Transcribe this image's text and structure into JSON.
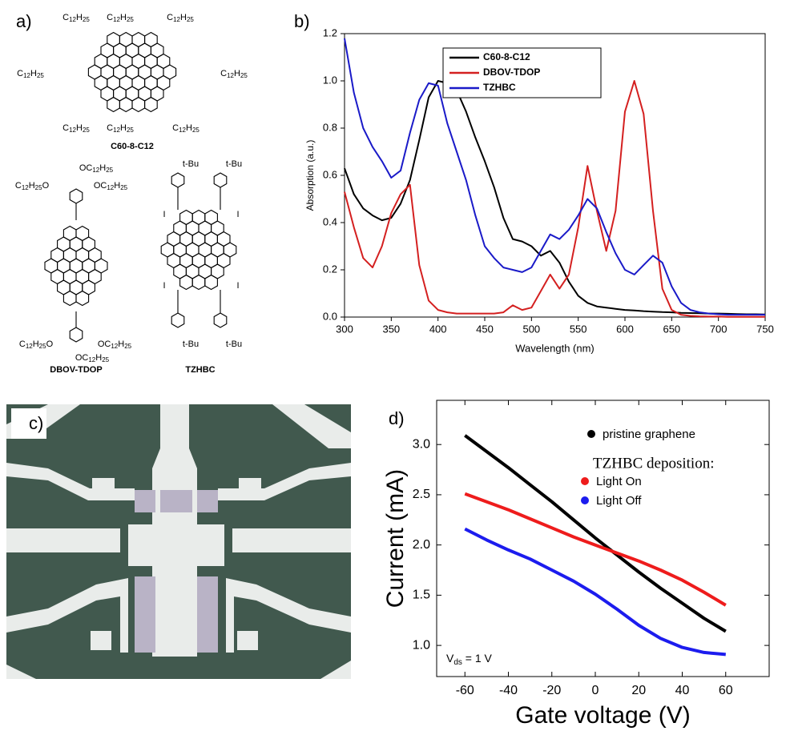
{
  "panel_labels": [
    "a)",
    "b)",
    "c)",
    "d)"
  ],
  "structures": [
    {
      "name": "C60-8-C12",
      "substituents": [
        "C12H25",
        "C12H25",
        "C12H25",
        "C12H25",
        "C12H25",
        "C12H25",
        "C12H25",
        "C12H25"
      ]
    },
    {
      "name": "DBOV-TDOP",
      "substituents": [
        "OC12H25",
        "C12H25O",
        "OC12H25",
        "C12H25O",
        "OC12H25",
        "OC12H25"
      ]
    },
    {
      "name": "TZHBC",
      "substituents": [
        "t-Bu",
        "t-Bu",
        "I",
        "I",
        "I",
        "I",
        "t-Bu",
        "t-Bu"
      ]
    }
  ],
  "chart_data": [
    {
      "type": "line",
      "xlabel": "Wavelength (nm)",
      "ylabel": "Absorption (a.u.)",
      "legend": "upper center",
      "x": [
        300,
        310,
        320,
        330,
        340,
        350,
        360,
        370,
        380,
        390,
        400,
        410,
        420,
        430,
        440,
        450,
        460,
        470,
        480,
        490,
        500,
        510,
        520,
        530,
        540,
        550,
        560,
        570,
        580,
        590,
        600,
        610,
        620,
        630,
        640,
        650,
        660,
        670,
        680,
        690,
        700,
        710,
        720,
        730,
        740,
        750
      ],
      "series": [
        {
          "name": "C60-8-C12",
          "color": "#000000",
          "values": [
            0.63,
            0.52,
            0.46,
            0.43,
            0.41,
            0.42,
            0.48,
            0.58,
            0.75,
            0.93,
            1.0,
            0.99,
            0.96,
            0.87,
            0.76,
            0.66,
            0.55,
            0.42,
            0.33,
            0.32,
            0.3,
            0.26,
            0.28,
            0.23,
            0.15,
            0.09,
            0.06,
            0.045,
            0.04,
            0.035,
            0.03,
            0.028,
            0.025,
            0.023,
            0.021,
            0.02,
            0.018,
            0.017,
            0.016,
            0.015,
            0.015,
            0.014,
            0.013,
            0.012,
            0.012,
            0.011
          ]
        },
        {
          "name": "DBOV-TDOP",
          "color": "#d42020",
          "values": [
            0.53,
            0.38,
            0.25,
            0.21,
            0.3,
            0.44,
            0.52,
            0.56,
            0.22,
            0.07,
            0.03,
            0.02,
            0.015,
            0.015,
            0.015,
            0.015,
            0.015,
            0.02,
            0.05,
            0.03,
            0.04,
            0.11,
            0.18,
            0.12,
            0.18,
            0.38,
            0.64,
            0.45,
            0.28,
            0.45,
            0.87,
            1.0,
            0.86,
            0.45,
            0.12,
            0.03,
            0.01,
            0.005,
            0.003,
            0.002,
            0.002,
            0.001,
            0.001,
            0.001,
            0.001,
            0.001
          ]
        },
        {
          "name": "TZHBC",
          "color": "#1a1ac8",
          "values": [
            1.18,
            0.95,
            0.8,
            0.72,
            0.66,
            0.59,
            0.62,
            0.78,
            0.92,
            0.99,
            0.98,
            0.82,
            0.7,
            0.58,
            0.43,
            0.3,
            0.25,
            0.21,
            0.2,
            0.19,
            0.21,
            0.28,
            0.35,
            0.33,
            0.37,
            0.43,
            0.5,
            0.46,
            0.36,
            0.27,
            0.2,
            0.18,
            0.22,
            0.26,
            0.23,
            0.13,
            0.06,
            0.03,
            0.02,
            0.015,
            0.012,
            0.01,
            0.01,
            0.01,
            0.01,
            0.01
          ]
        }
      ],
      "xlim": [
        300,
        750
      ],
      "xticks": [
        300,
        350,
        400,
        450,
        500,
        550,
        600,
        650,
        700,
        750
      ],
      "ylim": [
        0,
        1.2
      ],
      "yticks": [
        {
          "value": 0,
          "label": "0.0"
        },
        0.2,
        0.4,
        0.6,
        0.8,
        {
          "value": 1,
          "label": "1.0"
        },
        1.2
      ]
    },
    {
      "type": "line",
      "xlabel": "Gate voltage (V)",
      "ylabel": "Current (mA)",
      "legend": "upper right",
      "legend_title": "TZHBC deposition:",
      "annotation": {
        "main": "V",
        "sub": "ds",
        "rest": " = 1 V"
      },
      "x": [
        -60,
        -50,
        -40,
        -30,
        -20,
        -10,
        0,
        10,
        20,
        30,
        40,
        50,
        60
      ],
      "series": [
        {
          "name": "pristine graphene",
          "color": "#000000",
          "values": [
            3.09,
            2.93,
            2.77,
            2.6,
            2.43,
            2.25,
            2.07,
            1.9,
            1.73,
            1.57,
            1.42,
            1.27,
            1.14
          ]
        },
        {
          "name": "Light On",
          "color": "#ee1c1c",
          "values": [
            2.51,
            2.43,
            2.35,
            2.26,
            2.17,
            2.08,
            2.0,
            1.92,
            1.84,
            1.75,
            1.65,
            1.53,
            1.4
          ]
        },
        {
          "name": "Light Off",
          "color": "#1c1cee",
          "values": [
            2.16,
            2.05,
            1.95,
            1.86,
            1.75,
            1.64,
            1.51,
            1.36,
            1.2,
            1.07,
            0.98,
            0.93,
            0.91
          ]
        }
      ],
      "xlim": [
        -73,
        80
      ],
      "xticks": [
        -60,
        -40,
        -20,
        0,
        20,
        40,
        60
      ],
      "ylim": [
        0.69,
        3.44
      ],
      "yticks": [
        {
          "value": 1,
          "label": "1.0"
        },
        1.5,
        {
          "value": 2,
          "label": "2.0"
        },
        2.5,
        {
          "value": 3,
          "label": "3.0"
        }
      ]
    }
  ]
}
